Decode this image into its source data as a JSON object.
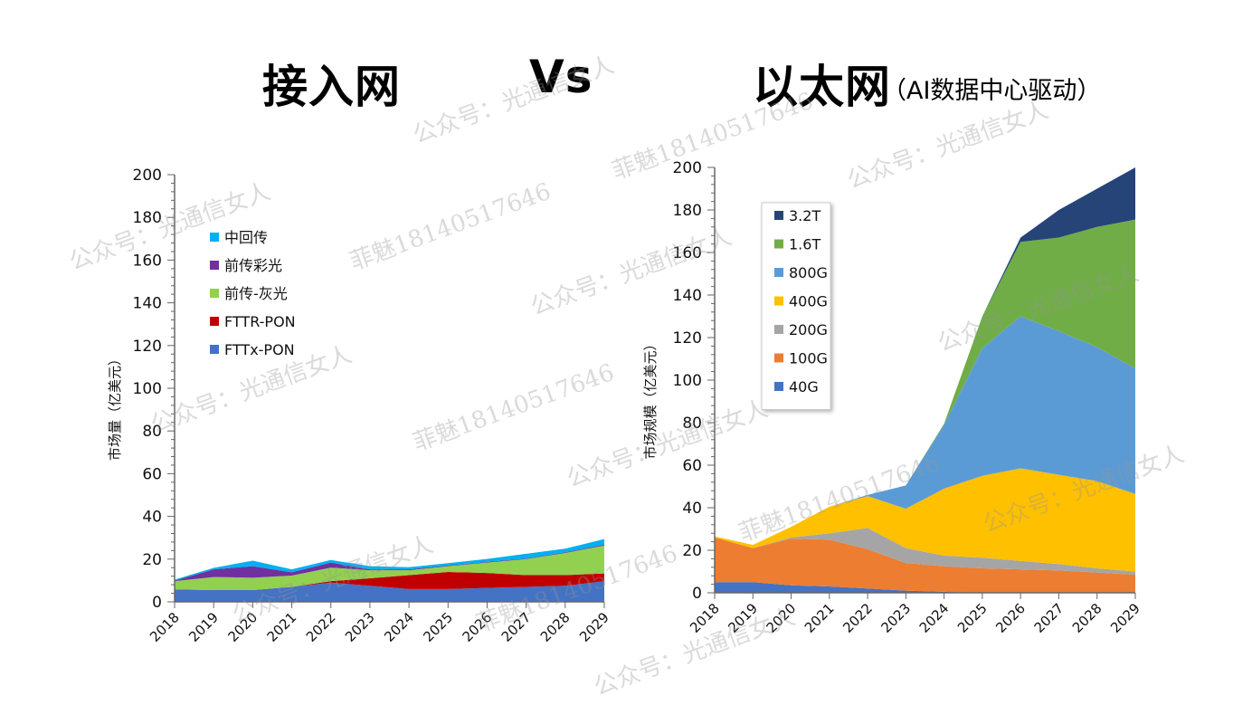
{
  "header": {
    "left_title": "接入网",
    "vs": "Vs",
    "right_title": "以太网",
    "right_subtitle": "（AI数据中心驱动）"
  },
  "watermarks": [
    "公众号：光通信女人",
    "菲魅18140517646"
  ],
  "chart_data": [
    {
      "type": "area",
      "stacked": true,
      "title": "接入网",
      "xlabel": "",
      "ylabel": "市场量（亿美元）",
      "ylim": [
        0,
        200
      ],
      "yticks": [
        0,
        20,
        40,
        60,
        80,
        100,
        120,
        140,
        160,
        180,
        200
      ],
      "legend_position": "top-left",
      "categories": [
        "2018",
        "2019",
        "2020",
        "2021",
        "2022",
        "2023",
        "2024",
        "2025",
        "2026",
        "2027",
        "2028",
        "2029"
      ],
      "series": [
        {
          "name": "FTTx-PON",
          "color": "#4472C4",
          "values": [
            5.8,
            5.5,
            5.5,
            7,
            9,
            7.5,
            6,
            6,
            6.5,
            7,
            7.5,
            9.7
          ]
        },
        {
          "name": "FTTR-PON",
          "color": "#C00000",
          "values": [
            0,
            0,
            0,
            0,
            0.7,
            3.5,
            6.5,
            8,
            7,
            5.5,
            5,
            3.6
          ]
        },
        {
          "name": "前传-灰光",
          "color": "#92D050",
          "values": [
            3.9,
            6.1,
            5.8,
            5.3,
            6.3,
            3.8,
            2.3,
            2.7,
            4.9,
            7.5,
            10.4,
            13.1
          ]
        },
        {
          "name": "前传彩光",
          "color": "#7030A0",
          "values": [
            0.2,
            3.6,
            5.4,
            1.5,
            2.4,
            0.4,
            0.4,
            0.3,
            0.3,
            0.3,
            0.3,
            0.4
          ]
        },
        {
          "name": "中回传",
          "color": "#00B0F0",
          "values": [
            0.5,
            0.7,
            2.6,
            1.4,
            1.2,
            1.5,
            1,
            1.1,
            1.4,
            2.2,
            1.7,
            2.6
          ]
        }
      ]
    },
    {
      "type": "area",
      "stacked": true,
      "title": "以太网（AI数据中心驱动）",
      "xlabel": "",
      "ylabel": "市场规模（亿美元）",
      "ylim": [
        0,
        200
      ],
      "yticks": [
        0,
        20,
        40,
        60,
        80,
        100,
        120,
        140,
        160,
        180,
        200
      ],
      "legend_position": "top-left",
      "categories": [
        "2018",
        "2019",
        "2020",
        "2021",
        "2022",
        "2023",
        "2024",
        "2025",
        "2026",
        "2027",
        "2028",
        "2029"
      ],
      "series": [
        {
          "name": "40G",
          "color": "#4472C4",
          "values": [
            5,
            5,
            3.5,
            3,
            2,
            1,
            0.5,
            0,
            0,
            0,
            0,
            0
          ]
        },
        {
          "name": "100G",
          "color": "#ED7D31",
          "values": [
            21,
            16,
            22,
            22,
            18.5,
            13,
            12,
            11.5,
            11,
            10.5,
            9.5,
            8.5
          ]
        },
        {
          "name": "200G",
          "color": "#A5A5A5",
          "values": [
            0,
            0,
            0.5,
            3,
            10,
            7,
            5,
            5,
            4,
            3,
            2,
            1.5
          ]
        },
        {
          "name": "400G",
          "color": "#FFC000",
          "values": [
            0.5,
            1.5,
            5,
            12.5,
            15,
            18.5,
            31.5,
            38.5,
            43.5,
            42,
            41,
            36.5
          ]
        },
        {
          "name": "800G",
          "color": "#5B9BD5",
          "values": [
            0,
            0,
            0,
            0,
            0.5,
            11,
            30,
            60,
            71.5,
            67.5,
            63,
            59
          ]
        },
        {
          "name": "1.6T",
          "color": "#70AD47",
          "values": [
            0,
            0,
            0,
            0,
            0,
            0,
            0.5,
            15,
            35,
            44,
            56.5,
            70
          ]
        },
        {
          "name": "3.2T",
          "color": "#264478",
          "values": [
            0,
            0,
            0,
            0,
            0,
            0,
            0,
            0,
            2,
            13,
            18,
            24.5
          ]
        }
      ]
    }
  ]
}
